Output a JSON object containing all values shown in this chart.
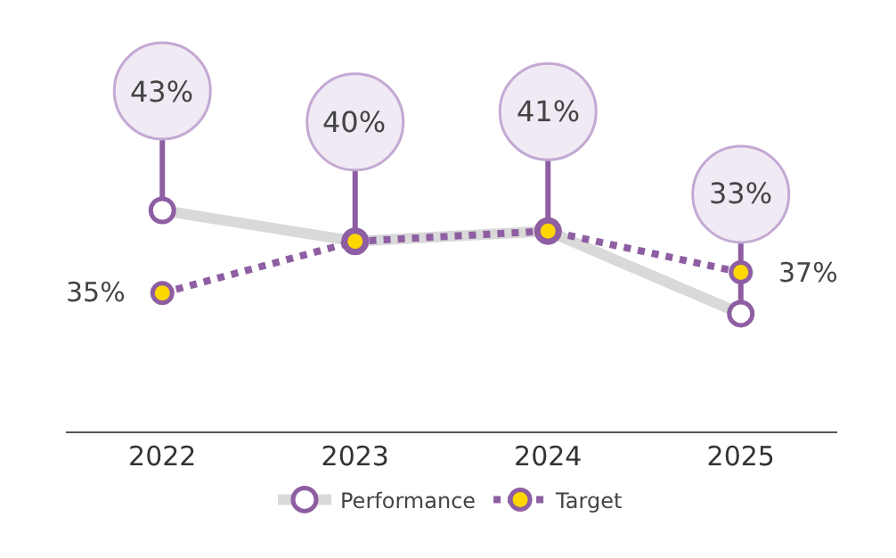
{
  "chart_data": {
    "type": "line",
    "categories": [
      "2022",
      "2023",
      "2024",
      "2025"
    ],
    "series": [
      {
        "name": "Performance",
        "color": "#d9d9d9",
        "colors": [
          "#ffffff",
          "#8e5ea2",
          "#8e5ea2",
          "#ffffff"
        ],
        "values": [
          43,
          40,
          41,
          33
        ],
        "value_labels": [
          "43%",
          "40%",
          "41%",
          "33%"
        ],
        "line_style": "solid"
      },
      {
        "name": "Target",
        "color": "#8e5ea2",
        "colors": [
          "#ffd700",
          "#ffd700",
          "#ffd700",
          "#ffd700"
        ],
        "values": [
          35,
          40,
          41,
          37
        ],
        "value_labels": [
          "35%",
          null,
          null,
          "37%"
        ],
        "line_style": "dotted"
      }
    ],
    "marker": "circle",
    "legend": "bottom",
    "grid": false
  }
}
